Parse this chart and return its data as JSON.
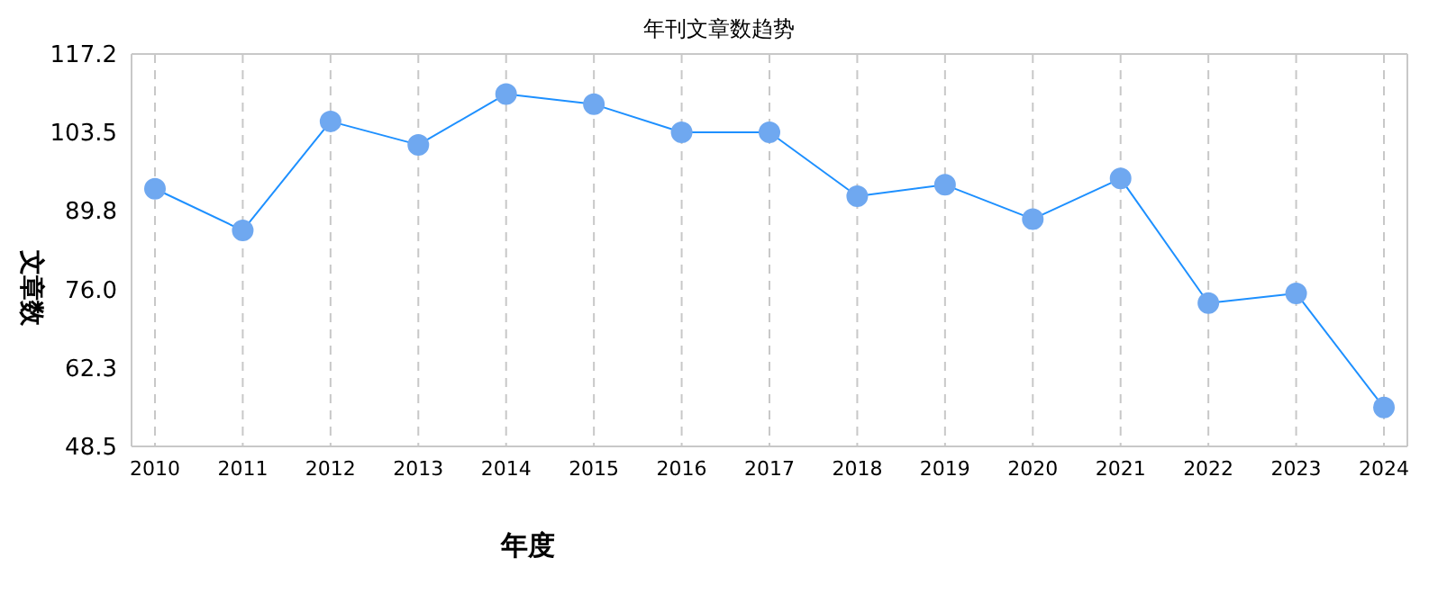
{
  "chart_data": {
    "type": "line",
    "title": "年刊文章数趋势",
    "xlabel": "年度",
    "ylabel": "文章数",
    "categories": [
      "2010",
      "2011",
      "2012",
      "2013",
      "2014",
      "2015",
      "2016",
      "2017",
      "2018",
      "2019",
      "2020",
      "2021",
      "2022",
      "2023",
      "2024"
    ],
    "series": [
      {
        "color": "#1e90ff",
        "values": [
          93.6,
          86.3,
          105.4,
          101.3,
          110.2,
          108.4,
          103.5,
          103.5,
          92.3,
          94.3,
          88.3,
          95.4,
          73.6,
          75.3,
          55.3
        ]
      }
    ],
    "ylim": [
      48.5,
      117.2
    ],
    "yticks": [
      {
        "value": 48.5,
        "label": "48.5"
      },
      {
        "value": 62.3,
        "label": "62.3"
      },
      {
        "value": 76,
        "label": "76.0"
      },
      {
        "value": 89.8,
        "label": "89.8"
      },
      {
        "value": 103.5,
        "label": "103.5"
      },
      {
        "value": 117.2,
        "label": "117.2"
      }
    ],
    "grid": true,
    "marker": "circle",
    "line_style": "solid"
  }
}
